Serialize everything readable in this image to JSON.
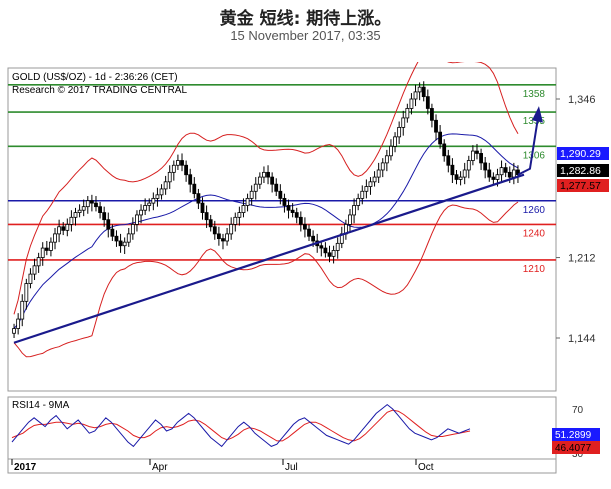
{
  "header": {
    "title": "黄金 短线: 期待上涨。",
    "subtitle": "15 November 2017, 03:35"
  },
  "chart_data": {
    "type": "candlestick",
    "instrument_label": "GOLD (US$/OZ) - 1d - 2:36:26 (CET)",
    "source_label": "Research © 2017 TRADING CENTRAL",
    "price_axis_ticks": [
      1346,
      1212,
      1144
    ],
    "x_axis_labels": [
      "2017",
      "Apr",
      "Jul",
      "Oct"
    ],
    "levels": [
      {
        "value": 1358,
        "label": "1358",
        "color": "#2e8b2e"
      },
      {
        "value": 1335,
        "label": "1335",
        "color": "#2e8b2e"
      },
      {
        "value": 1306,
        "label": "1306",
        "color": "#2e8b2e"
      },
      {
        "value": 1260,
        "label": "1260",
        "color": "#1a1aa8"
      },
      {
        "value": 1240,
        "label": "1240",
        "color": "#e02020"
      },
      {
        "value": 1210,
        "label": "1210",
        "color": "#e02020"
      }
    ],
    "price_tags": [
      {
        "value": "1,290.29",
        "bg": "#1a1aff",
        "fg": "#ffffff"
      },
      {
        "value": "1,282.86",
        "bg": "#000000",
        "fg": "#ffffff"
      },
      {
        "value": "1,277.57",
        "bg": "#e02020",
        "fg": "#000000"
      }
    ],
    "close_series": [
      1152,
      1160,
      1175,
      1190,
      1198,
      1205,
      1212,
      1220,
      1218,
      1225,
      1232,
      1238,
      1235,
      1240,
      1246,
      1250,
      1252,
      1255,
      1260,
      1258,
      1255,
      1250,
      1244,
      1236,
      1230,
      1226,
      1222,
      1225,
      1232,
      1240,
      1248,
      1252,
      1256,
      1258,
      1262,
      1265,
      1270,
      1276,
      1284,
      1290,
      1294,
      1290,
      1282,
      1274,
      1266,
      1258,
      1250,
      1244,
      1238,
      1232,
      1228,
      1226,
      1232,
      1240,
      1246,
      1250,
      1256,
      1262,
      1268,
      1274,
      1280,
      1284,
      1280,
      1274,
      1268,
      1262,
      1256,
      1252,
      1250,
      1246,
      1240,
      1236,
      1230,
      1226,
      1222,
      1220,
      1216,
      1213,
      1218,
      1224,
      1232,
      1240,
      1248,
      1256,
      1262,
      1268,
      1272,
      1276,
      1280,
      1286,
      1292,
      1298,
      1306,
      1314,
      1322,
      1330,
      1338,
      1346,
      1352,
      1356,
      1348,
      1338,
      1328,
      1318,
      1308,
      1298,
      1290,
      1282,
      1278,
      1280,
      1286,
      1294,
      1302,
      1300,
      1292,
      1286,
      1280,
      1278,
      1282,
      1288,
      1284,
      1280,
      1286,
      1282
    ],
    "rsi": {
      "title": "RSI14 - 9MA",
      "ticks": [
        70,
        30
      ],
      "values": [
        40,
        46,
        52,
        58,
        62,
        58,
        54,
        60,
        64,
        58,
        52,
        56,
        60,
        54,
        48,
        50,
        56,
        62,
        58,
        52,
        46,
        40,
        36,
        42,
        48,
        54,
        60,
        56,
        50,
        52,
        58,
        62,
        66,
        62,
        56,
        50,
        44,
        40,
        36,
        42,
        48,
        54,
        58,
        54,
        48,
        44,
        40,
        36,
        38,
        44,
        50,
        56,
        60,
        62,
        58,
        54,
        50,
        46,
        44,
        42,
        40,
        38,
        42,
        48,
        54,
        60,
        66,
        70,
        74,
        70,
        64,
        58,
        52,
        48,
        46,
        44,
        42,
        44,
        48,
        52,
        50,
        48,
        50,
        52
      ],
      "ma_values": [
        44,
        46,
        48,
        52,
        55,
        56,
        56,
        57,
        58,
        58,
        57,
        56,
        57,
        56,
        54,
        53,
        54,
        56,
        57,
        56,
        53,
        50,
        46,
        44,
        44,
        46,
        50,
        53,
        54,
        53,
        54,
        56,
        59,
        60,
        59,
        56,
        52,
        48,
        44,
        42,
        44,
        47,
        51,
        53,
        52,
        50,
        47,
        44,
        41,
        41,
        44,
        48,
        52,
        56,
        58,
        58,
        56,
        53,
        50,
        47,
        44,
        42,
        41,
        43,
        47,
        52,
        57,
        62,
        67,
        69,
        68,
        65,
        61,
        57,
        53,
        49,
        46,
        45,
        45,
        46,
        47,
        48,
        49,
        50
      ],
      "tags": [
        {
          "value": "51.2899",
          "bg": "#1a1aff",
          "fg": "#ffffff"
        },
        {
          "value": "46.4077",
          "bg": "#e02020",
          "fg": "#000000"
        }
      ]
    }
  }
}
